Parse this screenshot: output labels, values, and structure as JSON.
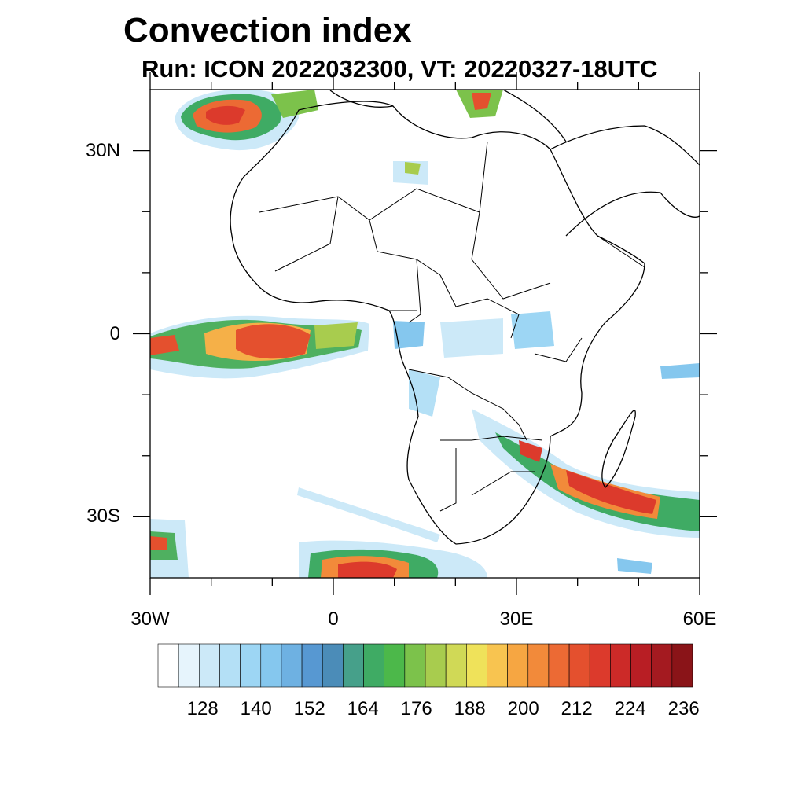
{
  "title": "Convection index",
  "subtitle": "Run: ICON 2022032300,  VT: 20220327-18UTC",
  "map": {
    "lon_range": [
      -30,
      60
    ],
    "lat_range": [
      -40,
      40
    ],
    "lon_ticks": [
      {
        "value": -30,
        "label": "30W"
      },
      {
        "value": 0,
        "label": "0"
      },
      {
        "value": 30,
        "label": "30E"
      },
      {
        "value": 60,
        "label": "60E"
      }
    ],
    "lat_ticks": [
      {
        "value": 30,
        "label": "30N"
      },
      {
        "value": 0,
        "label": "0"
      },
      {
        "value": -30,
        "label": "30S"
      }
    ],
    "minor_lon_ticks": [
      -20,
      -10,
      10,
      20,
      40,
      50
    ],
    "minor_lat_ticks": [
      20,
      10,
      -10,
      -20
    ]
  },
  "colorbar": {
    "colors": [
      "#ffffff",
      "#e6f4fc",
      "#cce9f8",
      "#b4e0f6",
      "#9dd6f4",
      "#85c7ee",
      "#6eb1e2",
      "#5798d2",
      "#4b8cb8",
      "#46a08a",
      "#3fab64",
      "#4cb84a",
      "#7cc24b",
      "#a8cc4e",
      "#d0d956",
      "#efe25a",
      "#f8c450",
      "#f6a642",
      "#f28a3a",
      "#ec6a34",
      "#e4502e",
      "#dc3a2c",
      "#cc2a28",
      "#b81e24",
      "#a41a20",
      "#8a1418"
    ],
    "labels": [
      "128",
      "140",
      "152",
      "164",
      "176",
      "188",
      "200",
      "212",
      "224",
      "236"
    ],
    "label_positions": [
      2.5,
      5.5,
      8.5,
      11.5,
      14.5,
      17.5,
      20.5,
      23.5,
      26.5,
      29.5
    ]
  }
}
